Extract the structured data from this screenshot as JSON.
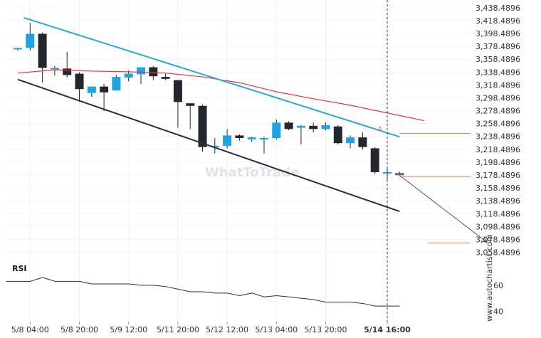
{
  "chart_data": {
    "type": "candlestick",
    "instrument": "",
    "y_axis_ticks": [
      "3,438.4896",
      "3,418.4896",
      "3,398.4896",
      "3,378.4896",
      "3,358.4896",
      "3,338.4896",
      "3,318.4896",
      "3,298.4896",
      "3,278.4896",
      "3,258.4896",
      "3,238.4896",
      "3,218.4896",
      "3,198.4896",
      "3,178.4896",
      "3,158.4896",
      "3,138.4896",
      "3,118.4896",
      "3,098.4896",
      "3,078.4896",
      "3,058.4896"
    ],
    "ylim": [
      3048,
      3445
    ],
    "x_axis_ticks": [
      {
        "label": "5/8 04:00",
        "index": 1,
        "active": false
      },
      {
        "label": "5/8 20:00",
        "index": 5,
        "active": false
      },
      {
        "label": "5/9 12:00",
        "index": 9,
        "active": false
      },
      {
        "label": "5/11 20:00",
        "index": 13,
        "active": false
      },
      {
        "label": "5/12 12:00",
        "index": 17,
        "active": false
      },
      {
        "label": "5/13 04:00",
        "index": 21,
        "active": false
      },
      {
        "label": "5/13 20:00",
        "index": 25,
        "active": false
      },
      {
        "label": "5/14 16:00",
        "index": 30,
        "active": true
      }
    ],
    "candles": [
      {
        "o": 3374,
        "h": 3376,
        "l": 3372,
        "c": 3376
      },
      {
        "o": 3376,
        "h": 3415,
        "l": 3372,
        "c": 3398
      },
      {
        "o": 3398,
        "h": 3400,
        "l": 3322,
        "c": 3345
      },
      {
        "o": 3345,
        "h": 3348,
        "l": 3333,
        "c": 3345
      },
      {
        "o": 3344,
        "h": 3370,
        "l": 3330,
        "c": 3334
      },
      {
        "o": 3336,
        "h": 3338,
        "l": 3292,
        "c": 3312
      },
      {
        "o": 3306,
        "h": 3316,
        "l": 3300,
        "c": 3316
      },
      {
        "o": 3316,
        "h": 3320,
        "l": 3278,
        "c": 3307
      },
      {
        "o": 3310,
        "h": 3334,
        "l": 3310,
        "c": 3331
      },
      {
        "o": 3330,
        "h": 3341,
        "l": 3324,
        "c": 3336
      },
      {
        "o": 3335,
        "h": 3346,
        "l": 3320,
        "c": 3346
      },
      {
        "o": 3346,
        "h": 3348,
        "l": 3326,
        "c": 3332
      },
      {
        "o": 3331,
        "h": 3336,
        "l": 3326,
        "c": 3328
      },
      {
        "o": 3326,
        "h": 3326,
        "l": 3252,
        "c": 3292
      },
      {
        "o": 3290,
        "h": 3290,
        "l": 3250,
        "c": 3286
      },
      {
        "o": 3286,
        "h": 3288,
        "l": 3215,
        "c": 3222
      },
      {
        "o": 3222,
        "h": 3236,
        "l": 3212,
        "c": 3224
      },
      {
        "o": 3224,
        "h": 3250,
        "l": 3220,
        "c": 3240
      },
      {
        "o": 3240,
        "h": 3242,
        "l": 3232,
        "c": 3236
      },
      {
        "o": 3234,
        "h": 3238,
        "l": 3230,
        "c": 3237
      },
      {
        "o": 3236,
        "h": 3238,
        "l": 3212,
        "c": 3236
      },
      {
        "o": 3236,
        "h": 3265,
        "l": 3234,
        "c": 3260
      },
      {
        "o": 3260,
        "h": 3262,
        "l": 3248,
        "c": 3250
      },
      {
        "o": 3252,
        "h": 3256,
        "l": 3226,
        "c": 3255
      },
      {
        "o": 3255,
        "h": 3260,
        "l": 3245,
        "c": 3250
      },
      {
        "o": 3250,
        "h": 3260,
        "l": 3248,
        "c": 3256
      },
      {
        "o": 3254,
        "h": 3256,
        "l": 3226,
        "c": 3228
      },
      {
        "o": 3228,
        "h": 3240,
        "l": 3220,
        "c": 3237
      },
      {
        "o": 3237,
        "h": 3245,
        "l": 3218,
        "c": 3222
      },
      {
        "o": 3220,
        "h": 3222,
        "l": 3180,
        "c": 3183
      },
      {
        "o": 3183,
        "h": 3190,
        "l": 3168,
        "c": 3183
      },
      {
        "o": 3180,
        "h": 3184,
        "l": 3178,
        "c": 3181
      }
    ],
    "moving_average": {
      "color": "#e53935",
      "points": [
        [
          0,
          3337
        ],
        [
          3,
          3342
        ],
        [
          6,
          3340
        ],
        [
          9,
          3339
        ],
        [
          12,
          3337
        ],
        [
          15,
          3331
        ],
        [
          18,
          3322
        ],
        [
          21,
          3308
        ],
        [
          24,
          3297
        ],
        [
          27,
          3287
        ],
        [
          30,
          3275
        ],
        [
          33,
          3263
        ]
      ]
    },
    "channel_upper": {
      "color": "#27a8e0",
      "points": [
        [
          0.5,
          3423
        ],
        [
          31,
          3238
        ]
      ]
    },
    "channel_lower": {
      "color": "#2c2f36",
      "points": [
        [
          0,
          3327
        ],
        [
          31,
          3122
        ]
      ]
    },
    "forecast_arrow": {
      "color": "#505860",
      "from": [
        31,
        3178
      ],
      "to": [
        38.1,
        3074
      ]
    },
    "levels": [
      {
        "name": "breakout-level",
        "value": 3243,
        "from": 31,
        "to": 40,
        "color": "#e4794a"
      },
      {
        "name": "entry-level",
        "value": 3176,
        "from": 31,
        "to": 40,
        "color": "#e4794a"
      },
      {
        "name": "target-level",
        "value": 3073,
        "from": 33.3,
        "to": 40,
        "color": "#e4794a"
      }
    ],
    "marker": {
      "label": "A",
      "index": 30,
      "value": 3251,
      "color": "#e4794a"
    },
    "current_time_index": 30,
    "rsi": {
      "label": "RSI",
      "ticks": [
        "60",
        "40"
      ],
      "ylim": [
        32,
        78
      ],
      "values": [
        63,
        63,
        63,
        66,
        63,
        63,
        63,
        61,
        61,
        61,
        61,
        60,
        60,
        59,
        57,
        55,
        55,
        54,
        54,
        52,
        54,
        51,
        52,
        51,
        50,
        49,
        47,
        47,
        47,
        46,
        44,
        44,
        44
      ]
    },
    "bull_color": "#1ca4e6",
    "bear_color": "#23262e",
    "watermark": "WhatToTrade",
    "side_credit": "www.autochartist.com"
  }
}
